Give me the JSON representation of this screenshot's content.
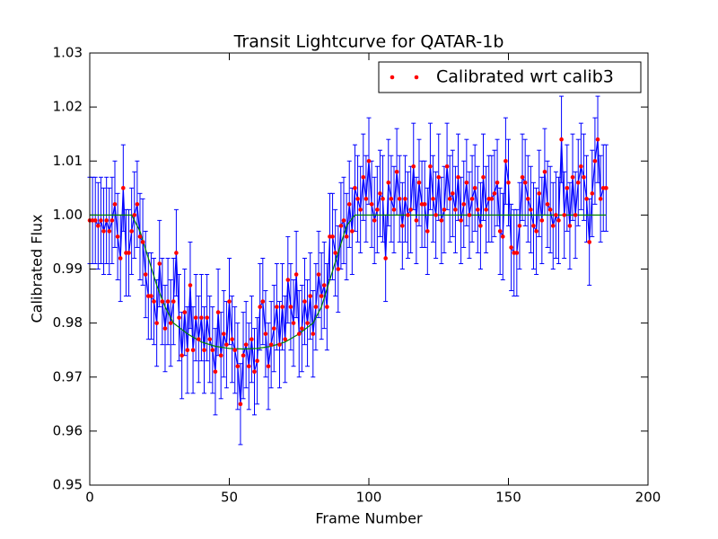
{
  "chart_data": {
    "type": "errorbar",
    "title": "Transit Lightcurve for QATAR-1b",
    "x_label": "Frame Number",
    "y_label": "Calibrated Flux",
    "xlim": [
      0,
      200
    ],
    "ylim": [
      0.95,
      1.03
    ],
    "xticks": [
      0,
      50,
      100,
      150,
      200
    ],
    "yticks": [
      0.95,
      0.96,
      0.97,
      0.98,
      0.99,
      {
        "value": 1,
        "label": "1.00"
      },
      1.01,
      1.02,
      1.03
    ],
    "grid": false,
    "legend": "upper right",
    "series": [
      {
        "name": "Calibrated wrt calib3",
        "color": "#ff0000",
        "line_color": "#0000ff",
        "x": [
          0,
          1,
          2,
          3,
          4,
          5,
          6,
          7,
          8,
          9,
          10,
          11,
          12,
          13,
          14,
          15,
          16,
          17,
          18,
          19,
          20,
          21,
          22,
          23,
          24,
          25,
          26,
          27,
          28,
          29,
          30,
          31,
          32,
          33,
          34,
          35,
          36,
          37,
          38,
          39,
          40,
          41,
          42,
          43,
          44,
          45,
          46,
          47,
          48,
          49,
          50,
          51,
          52,
          53,
          54,
          55,
          56,
          57,
          58,
          59,
          60,
          61,
          62,
          63,
          64,
          65,
          66,
          67,
          68,
          69,
          70,
          71,
          72,
          73,
          74,
          75,
          76,
          77,
          78,
          79,
          80,
          81,
          82,
          83,
          84,
          85,
          86,
          87,
          88,
          89,
          90,
          91,
          92,
          93,
          94,
          95,
          96,
          97,
          98,
          99,
          100,
          101,
          102,
          103,
          104,
          105,
          106,
          107,
          108,
          109,
          110,
          111,
          112,
          113,
          114,
          115,
          116,
          117,
          118,
          119,
          120,
          121,
          122,
          123,
          124,
          125,
          126,
          127,
          128,
          129,
          130,
          131,
          132,
          133,
          134,
          135,
          136,
          137,
          138,
          139,
          140,
          141,
          142,
          143,
          144,
          145,
          146,
          147,
          148,
          149,
          150,
          151,
          152,
          153,
          154,
          155,
          156,
          157,
          158,
          159,
          160,
          161,
          162,
          163,
          164,
          165,
          166,
          167,
          168,
          169,
          170,
          171,
          172,
          173,
          174,
          175,
          176,
          177,
          178,
          179,
          180,
          181,
          182,
          183,
          184,
          185
        ],
        "values": [
          0.999,
          0.999,
          0.999,
          0.998,
          0.999,
          0.997,
          0.999,
          0.997,
          0.999,
          1.002,
          0.996,
          0.992,
          1.005,
          0.993,
          0.993,
          0.997,
          1.0,
          1.002,
          0.996,
          0.995,
          0.989,
          0.985,
          0.985,
          0.984,
          0.98,
          0.991,
          0.984,
          0.979,
          0.984,
          0.98,
          0.984,
          0.993,
          0.981,
          0.974,
          0.982,
          0.975,
          0.987,
          0.975,
          0.981,
          0.977,
          0.981,
          0.975,
          0.981,
          0.977,
          0.975,
          0.971,
          0.982,
          0.974,
          0.978,
          0.976,
          0.984,
          0.977,
          0.975,
          0.972,
          0.965,
          0.974,
          0.976,
          0.972,
          0.977,
          0.971,
          0.973,
          0.983,
          0.984,
          0.978,
          0.972,
          0.976,
          0.979,
          0.983,
          0.976,
          0.983,
          0.977,
          0.988,
          0.983,
          0.98,
          0.989,
          0.978,
          0.979,
          0.984,
          0.98,
          0.985,
          0.978,
          0.983,
          0.989,
          0.985,
          0.987,
          0.983,
          0.996,
          0.996,
          0.993,
          0.99,
          0.998,
          0.999,
          0.996,
          1.002,
          0.997,
          1.005,
          1.003,
          1.001,
          1.007,
          1.003,
          1.01,
          1.002,
          0.999,
          1.001,
          1.004,
          1.003,
          0.992,
          1.006,
          1.003,
          1.001,
          1.008,
          1.003,
          0.998,
          1.003,
          1.0,
          1.001,
          1.009,
          0.999,
          1.006,
          1.002,
          1.002,
          0.997,
          1.009,
          1.003,
          1.0,
          1.007,
          0.999,
          1.001,
          1.009,
          1.003,
          1.004,
          1.001,
          1.007,
          0.999,
          1.002,
          1.006,
          1.0,
          1.003,
          1.005,
          1.001,
          0.998,
          1.007,
          1.001,
          1.003,
          1.003,
          1.004,
          1.006,
          0.997,
          0.996,
          1.01,
          1.006,
          0.994,
          0.993,
          0.993,
          0.998,
          1.007,
          1.006,
          1.003,
          1.001,
          0.998,
          0.997,
          1.004,
          0.999,
          1.008,
          1.002,
          1.001,
          0.998,
          1.0,
          0.999,
          1.014,
          1.0,
          1.005,
          0.998,
          1.007,
          1.0,
          1.006,
          1.009,
          1.007,
          1.003,
          0.995,
          1.004,
          1.01,
          1.014,
          1.003,
          1.005,
          1.005
        ],
        "errors": [
          0.008,
          0.008,
          0.008,
          0.008,
          0.008,
          0.008,
          0.008,
          0.008,
          0.008,
          0.008,
          0.008,
          0.008,
          0.008,
          0.008,
          0.008,
          0.008,
          0.008,
          0.008,
          0.008,
          0.008,
          0.008,
          0.008,
          0.008,
          0.008,
          0.008,
          0.008,
          0.008,
          0.008,
          0.008,
          0.008,
          0.008,
          0.008,
          0.008,
          0.008,
          0.008,
          0.008,
          0.008,
          0.008,
          0.008,
          0.008,
          0.008,
          0.008,
          0.008,
          0.008,
          0.008,
          0.008,
          0.008,
          0.008,
          0.008,
          0.008,
          0.008,
          0.008,
          0.008,
          0.008,
          0.0075,
          0.008,
          0.008,
          0.008,
          0.008,
          0.008,
          0.008,
          0.008,
          0.008,
          0.008,
          0.008,
          0.008,
          0.008,
          0.008,
          0.008,
          0.008,
          0.008,
          0.008,
          0.008,
          0.008,
          0.008,
          0.008,
          0.008,
          0.008,
          0.008,
          0.008,
          0.008,
          0.008,
          0.008,
          0.008,
          0.008,
          0.008,
          0.008,
          0.008,
          0.008,
          0.008,
          0.008,
          0.008,
          0.008,
          0.008,
          0.008,
          0.008,
          0.008,
          0.008,
          0.008,
          0.008,
          0.008,
          0.008,
          0.008,
          0.008,
          0.008,
          0.008,
          0.008,
          0.008,
          0.008,
          0.008,
          0.008,
          0.008,
          0.008,
          0.008,
          0.008,
          0.008,
          0.008,
          0.008,
          0.008,
          0.008,
          0.008,
          0.008,
          0.008,
          0.008,
          0.008,
          0.008,
          0.008,
          0.008,
          0.008,
          0.008,
          0.008,
          0.008,
          0.008,
          0.008,
          0.008,
          0.008,
          0.008,
          0.008,
          0.008,
          0.008,
          0.008,
          0.008,
          0.008,
          0.008,
          0.008,
          0.008,
          0.008,
          0.008,
          0.008,
          0.008,
          0.008,
          0.008,
          0.008,
          0.008,
          0.008,
          0.008,
          0.008,
          0.008,
          0.008,
          0.008,
          0.008,
          0.008,
          0.008,
          0.008,
          0.008,
          0.008,
          0.008,
          0.008,
          0.008,
          0.008,
          0.008,
          0.008,
          0.008,
          0.008,
          0.008,
          0.008,
          0.008,
          0.008,
          0.008,
          0.008,
          0.008,
          0.008,
          0.008,
          0.008,
          0.008,
          0.008
        ]
      },
      {
        "color": "#008000",
        "x": [
          0,
          15,
          18,
          21,
          24,
          27,
          30,
          35,
          40,
          45,
          50,
          55,
          60,
          65,
          70,
          75,
          80,
          83,
          86,
          89,
          92,
          95,
          185
        ],
        "values": [
          1.0,
          1.0,
          0.997,
          0.992,
          0.987,
          0.983,
          0.98,
          0.978,
          0.9765,
          0.9757,
          0.9753,
          0.9752,
          0.9753,
          0.9757,
          0.9765,
          0.978,
          0.98,
          0.983,
          0.988,
          0.993,
          0.998,
          1.0,
          1.0
        ]
      }
    ]
  }
}
